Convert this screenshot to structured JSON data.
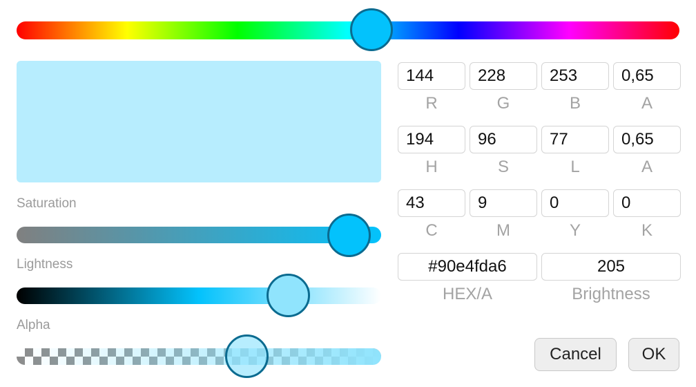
{
  "colors": {
    "selected_hex": "#90e4fda6",
    "hue_pure": "#03c2fc",
    "thumb_border": "#0b6b90"
  },
  "levels": {
    "hue_degrees": 194,
    "saturation_fraction": 0.96,
    "lightness_fraction": 0.77,
    "alpha_fraction": 0.65
  },
  "labels": {
    "saturation": "Saturation",
    "lightness": "Lightness",
    "alpha": "Alpha"
  },
  "rgba": [
    {
      "value": "144",
      "label": "R"
    },
    {
      "value": "228",
      "label": "G"
    },
    {
      "value": "253",
      "label": "B"
    },
    {
      "value": "0,65",
      "label": "A"
    }
  ],
  "hsla": [
    {
      "value": "194",
      "label": "H"
    },
    {
      "value": "96",
      "label": "S"
    },
    {
      "value": "77",
      "label": "L"
    },
    {
      "value": "0,65",
      "label": "A"
    }
  ],
  "cmyk": [
    {
      "value": "43",
      "label": "C"
    },
    {
      "value": "9",
      "label": "M"
    },
    {
      "value": "0",
      "label": "Y"
    },
    {
      "value": "0",
      "label": "K"
    }
  ],
  "hex": {
    "value": "#90e4fda6",
    "label": "HEX/A"
  },
  "brightness": {
    "value": "205",
    "label": "Brightness"
  },
  "buttons": {
    "cancel": "Cancel",
    "ok": "OK"
  }
}
